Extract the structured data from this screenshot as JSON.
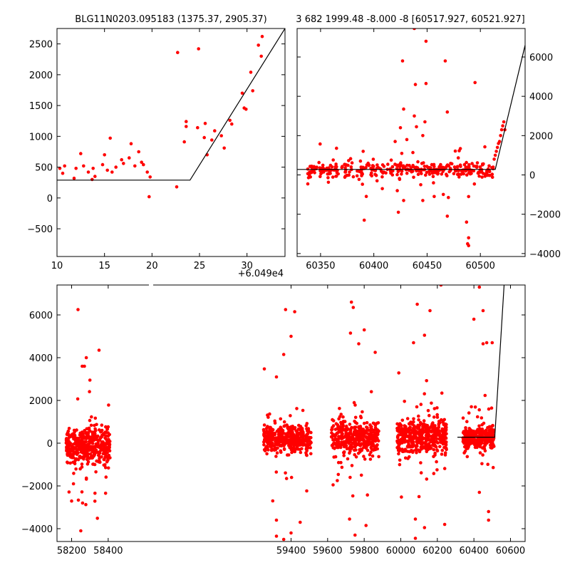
{
  "chart_data": [
    {
      "type": "scatter",
      "title": "BLG11N0203.095183 (1375.37, 2905.37)",
      "x_offset_label": "+6.049e4",
      "xlim": [
        10,
        34
      ],
      "ylim": [
        -950,
        2750
      ],
      "x_ticks": [
        10,
        15,
        20,
        25,
        30
      ],
      "y_ticks": [
        -500,
        0,
        500,
        1000,
        1500,
        2000,
        2500
      ],
      "marker_color": "#ff0000",
      "line_color": "#000000",
      "series": [
        {
          "points": [
            [
              10.3,
              480
            ],
            [
              10.6,
              400
            ],
            [
              10.8,
              520
            ],
            [
              11.8,
              320
            ],
            [
              12.0,
              480
            ],
            [
              12.5,
              720
            ],
            [
              12.8,
              520
            ],
            [
              13.3,
              420
            ],
            [
              13.7,
              300
            ],
            [
              13.8,
              480
            ],
            [
              14.0,
              350
            ],
            [
              14.8,
              540
            ],
            [
              15.0,
              700
            ],
            [
              15.3,
              450
            ],
            [
              15.6,
              970
            ],
            [
              15.8,
              420
            ],
            [
              16.2,
              500
            ],
            [
              16.8,
              620
            ],
            [
              17.0,
              560
            ],
            [
              17.6,
              650
            ],
            [
              17.8,
              880
            ],
            [
              18.2,
              520
            ],
            [
              18.6,
              750
            ],
            [
              18.9,
              580
            ],
            [
              19.1,
              540
            ],
            [
              19.5,
              420
            ],
            [
              19.8,
              340
            ],
            [
              19.7,
              20
            ],
            [
              22.6,
              180
            ],
            [
              22.7,
              2360
            ],
            [
              23.4,
              910
            ],
            [
              23.6,
              1240
            ],
            [
              23.6,
              1160
            ],
            [
              24.8,
              1140
            ],
            [
              24.9,
              2420
            ],
            [
              25.5,
              980
            ],
            [
              25.6,
              1210
            ],
            [
              25.8,
              700
            ],
            [
              26.3,
              940
            ],
            [
              26.6,
              1090
            ],
            [
              27.3,
              1010
            ],
            [
              27.6,
              810
            ],
            [
              28.2,
              1260
            ],
            [
              28.4,
              1200
            ],
            [
              29.5,
              1700
            ],
            [
              29.7,
              1460
            ],
            [
              29.9,
              1440
            ],
            [
              30.4,
              2040
            ],
            [
              30.6,
              1740
            ],
            [
              31.2,
              2480
            ],
            [
              31.5,
              2300
            ],
            [
              31.6,
              2620
            ]
          ],
          "model": [
            [
              10,
              290
            ],
            [
              24,
              290
            ],
            [
              34,
              2750
            ]
          ]
        }
      ]
    },
    {
      "type": "scatter",
      "title": "3 682 1999.48 -8.000 -8 [60517.927, 60521.927]",
      "xlim": [
        60328,
        60542
      ],
      "ylim": [
        -4150,
        7450
      ],
      "x_ticks": [
        60350,
        60400,
        60450,
        60500
      ],
      "y_ticks": [
        -4000,
        -2000,
        0,
        2000,
        4000,
        6000
      ],
      "y_axis_side": "right",
      "marker_color": "#ff0000",
      "line_color": "#000000",
      "series": [
        {
          "outliers": [
            [
              60438,
              7450
            ],
            [
              60449,
              6800
            ],
            [
              60427,
              5800
            ],
            [
              60467,
              5800
            ],
            [
              60495,
              4700
            ],
            [
              60439,
              4600
            ],
            [
              60449,
              4650
            ],
            [
              60428,
              3350
            ],
            [
              60469,
              3200
            ],
            [
              60438,
              3000
            ],
            [
              60448,
              2700
            ],
            [
              60425,
              2400
            ],
            [
              60440,
              2450
            ],
            [
              60446,
              2000
            ],
            [
              60431,
              1800
            ],
            [
              60420,
              1700
            ],
            [
              60390,
              1200
            ],
            [
              60470,
              -1150
            ],
            [
              60423,
              -1900
            ],
            [
              60428,
              -1300
            ],
            [
              60446,
              -1300
            ],
            [
              60469,
              -2100
            ],
            [
              60391,
              -2300
            ],
            [
              60487,
              -2400
            ],
            [
              60489,
              -3200
            ],
            [
              60488,
              -3500
            ],
            [
              60489,
              -3600
            ],
            [
              60408,
              -700
            ],
            [
              60444,
              -500
            ],
            [
              60456,
              -400
            ],
            [
              60489,
              -1100
            ],
            [
              60422,
              -800
            ]
          ],
          "band": {
            "x_start": 60338,
            "x_end": 60512,
            "center": 250,
            "spread": 400,
            "count": 360
          },
          "rise": [
            [
              60512,
              400
            ],
            [
              60513,
              800
            ],
            [
              60514,
              1000
            ],
            [
              60515,
              1200
            ],
            [
              60516,
              1400
            ],
            [
              60517,
              1600
            ],
            [
              60518,
              1700
            ],
            [
              60519,
              2000
            ],
            [
              60520,
              2300
            ],
            [
              60521,
              2500
            ],
            [
              60522,
              2700
            ],
            [
              60523,
              2300
            ]
          ],
          "model": [
            [
              60328,
              280
            ],
            [
              60514,
              280
            ],
            [
              60542,
              6600
            ]
          ]
        }
      ]
    },
    {
      "type": "scatter",
      "title": "",
      "xlim": [
        58120,
        60680
      ],
      "ylim": [
        -4600,
        7400
      ],
      "x_ticks": [
        58200,
        58400,
        59400,
        59600,
        59800,
        60000,
        60200,
        60400,
        60600
      ],
      "y_ticks": [
        -4000,
        -2000,
        0,
        2000,
        4000,
        6000
      ],
      "marker_color": "#ff0000",
      "line_color": "#000000",
      "series": [
        {
          "seasons": [
            {
              "x_start": 58170,
              "x_end": 58410,
              "center": -150,
              "spread": 900,
              "count": 420
            },
            {
              "x_start": 59250,
              "x_end": 59510,
              "center": 200,
              "spread": 700,
              "count": 420
            },
            {
              "x_start": 59620,
              "x_end": 59880,
              "center": 250,
              "spread": 800,
              "count": 380
            },
            {
              "x_start": 59980,
              "x_end": 60250,
              "center": 350,
              "spread": 850,
              "count": 460
            },
            {
              "x_start": 60340,
              "x_end": 60510,
              "center": 250,
              "spread": 500,
              "count": 320
            }
          ],
          "outliers": [
            [
              58235,
              6250
            ],
            [
              58280,
              4000
            ],
            [
              58350,
              4350
            ],
            [
              58270,
              3600
            ],
            [
              58258,
              3600
            ],
            [
              58300,
              2950
            ],
            [
              59370,
              6250
            ],
            [
              59420,
              6150
            ],
            [
              59400,
              5000
            ],
            [
              59360,
              4150
            ],
            [
              59320,
              3100
            ],
            [
              59730,
              6600
            ],
            [
              59740,
              6350
            ],
            [
              59725,
              5150
            ],
            [
              59800,
              5300
            ],
            [
              59770,
              4650
            ],
            [
              59860,
              4250
            ],
            [
              60070,
              4700
            ],
            [
              60090,
              6500
            ],
            [
              60130,
              5050
            ],
            [
              60160,
              6200
            ],
            [
              60220,
              7400
            ],
            [
              60430,
              7300
            ],
            [
              60450,
              6200
            ],
            [
              60400,
              5800
            ],
            [
              60450,
              4650
            ],
            [
              60470,
              4700
            ],
            [
              60500,
              4700
            ],
            [
              58250,
              -4100
            ],
            [
              59320,
              -4350
            ],
            [
              59360,
              -4500
            ],
            [
              59400,
              -4200
            ],
            [
              59450,
              -3700
            ],
            [
              59320,
              -3600
            ],
            [
              59750,
              -4300
            ],
            [
              59810,
              -3850
            ],
            [
              59720,
              -3550
            ],
            [
              60080,
              -4450
            ],
            [
              60130,
              -3950
            ],
            [
              60080,
              -3550
            ],
            [
              60240,
              -3800
            ],
            [
              60480,
              -3600
            ],
            [
              60480,
              -3200
            ],
            [
              58210,
              -1900
            ],
            [
              58260,
              -2800
            ],
            [
              59300,
              -2700
            ],
            [
              59630,
              -1950
            ],
            [
              60100,
              -2500
            ],
            [
              60430,
              -2300
            ]
          ],
          "model": [
            [
              60310,
              280
            ],
            [
              60514,
              280
            ],
            [
              60565,
              7400
            ]
          ]
        }
      ]
    }
  ]
}
